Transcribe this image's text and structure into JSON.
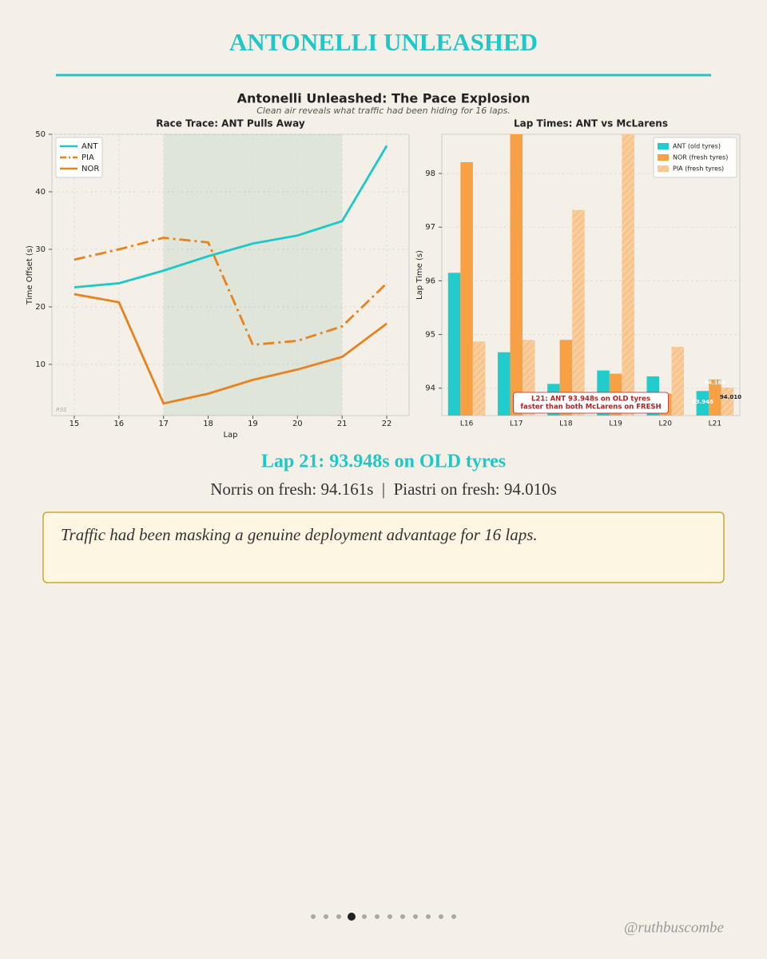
{
  "header": {
    "title": "ANTONELLI UNLEASHED"
  },
  "figure": {
    "title": "Antonelli Unleashed: The Pace Explosion",
    "subtitle": "Clean air reveals what traffic had been hiding for 16 laps."
  },
  "chart_data": [
    {
      "type": "line",
      "title": "Race Trace: ANT Pulls Away",
      "x_label": "Lap",
      "y_label": "Time Offset (s)",
      "x": [
        15,
        16,
        17,
        18,
        19,
        20,
        21,
        22
      ],
      "series": [
        {
          "name": "ANT",
          "color": "#1ec8c8",
          "style": "solid",
          "values": [
            23.4,
            24.1,
            26.3,
            28.8,
            31.0,
            32.4,
            34.9,
            48.0
          ]
        },
        {
          "name": "PIA",
          "color": "#e8821e",
          "style": "dashdot",
          "values": [
            28.2,
            30.0,
            32.0,
            31.2,
            13.4,
            14.1,
            16.6,
            24.1
          ]
        },
        {
          "name": "NOR",
          "color": "#e8821e",
          "style": "solid",
          "values": [
            22.2,
            20.8,
            3.2,
            4.9,
            7.3,
            9.1,
            11.3,
            17.1
          ]
        }
      ],
      "xlim": [
        14.5,
        22.5
      ],
      "ylim": [
        1.1,
        50
      ],
      "xticks": [
        15,
        16,
        17,
        18,
        19,
        20,
        21,
        22
      ],
      "yticks": [
        10,
        20,
        30,
        40,
        50
      ],
      "shade": [
        17,
        21
      ],
      "shade_color": "#2e8b57",
      "grid": true,
      "legend": "upper-left",
      "watermark": "RSS"
    },
    {
      "type": "bar",
      "title": "Lap Times: ANT vs McLarens",
      "y_label": "Lap Time (s)",
      "categories": [
        "L16",
        "L17",
        "L18",
        "L19",
        "L20",
        "L21"
      ],
      "series": [
        {
          "name": "ANT (old tyres)",
          "color": "#22cccc",
          "hatch": false,
          "values": [
            96.15,
            94.67,
            94.08,
            94.33,
            94.22,
            93.948
          ]
        },
        {
          "name": "NOR (fresh tyres)",
          "color": "#f7a044",
          "hatch": false,
          "values": [
            98.21,
            99.0,
            94.9,
            94.27,
            93.9,
            94.161
          ]
        },
        {
          "name": "PIA (fresh tyres)",
          "color": "#f8c58e",
          "hatch": true,
          "values": [
            94.87,
            94.9,
            97.32,
            99.0,
            94.77,
            94.01
          ],
          "value_labels": [
            null,
            null,
            null,
            null,
            null,
            "94.010"
          ]
        }
      ],
      "ylim": [
        93.49,
        98.73
      ],
      "yticks": [
        94,
        95,
        96,
        97,
        98
      ],
      "grid": true,
      "legend": "upper-right",
      "label_last": true,
      "annotation": [
        "L21: ANT 93.948s on OLD tyres",
        "faster than both McLarens on FRESH"
      ]
    }
  ],
  "highlight": {
    "headline": "Lap 21: 93.948s on OLD tyres",
    "detail": "Norris on fresh: 94.161s  |  Piastri on fresh: 94.010s"
  },
  "callout": "Traffic had been masking a genuine deployment advantage for 16 laps.",
  "footer": {
    "handle": "@ruthbuscombe"
  }
}
